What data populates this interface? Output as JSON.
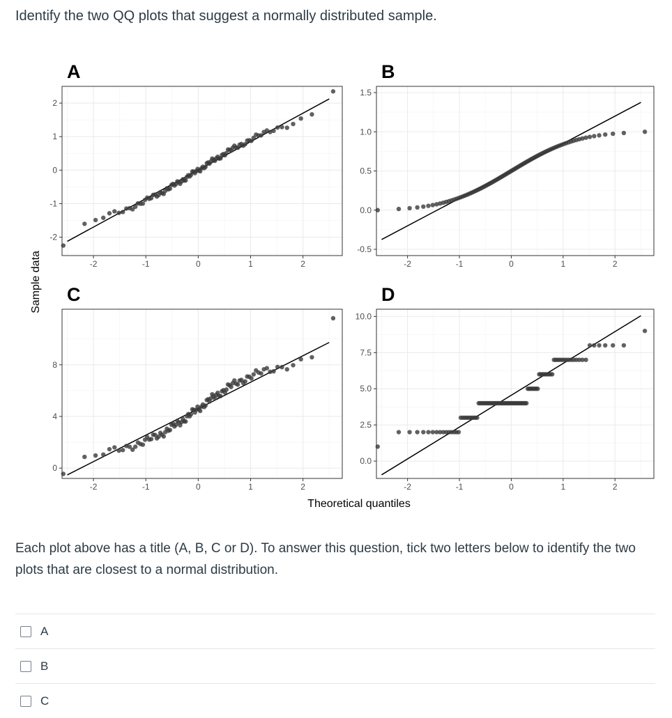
{
  "question": {
    "text": "Identify the two QQ plots that suggest a normally distributed sample."
  },
  "chart_data": {
    "type": "scatter",
    "ylabel": "Sample data",
    "xlabel": "Theoretical quantiles",
    "colors": {
      "point": "#3a3a3a",
      "line": "#000000",
      "grid_major": "#ebebeb",
      "grid_minor": "#f5f5f5"
    },
    "panels": [
      {
        "id": "A",
        "title": "A",
        "xlim": [
          -2.6,
          2.75
        ],
        "ylim": [
          -2.55,
          2.5
        ],
        "xticks": [
          -2,
          -1,
          0,
          1,
          2
        ],
        "yticks": [
          -2,
          -1,
          0,
          1,
          2
        ],
        "yticklabels": [
          "-2",
          "-1",
          "0",
          "1",
          "2"
        ],
        "line": {
          "intercept": 0.0,
          "slope": 0.85
        },
        "dist": "normal"
      },
      {
        "id": "B",
        "title": "B",
        "xlim": [
          -2.6,
          2.75
        ],
        "ylim": [
          -0.58,
          1.58
        ],
        "xticks": [
          -2,
          -1,
          0,
          1,
          2
        ],
        "yticks": [
          -0.5,
          0,
          0.5,
          1,
          1.5
        ],
        "yticklabels": [
          "-0.5",
          "0.0",
          "0.5",
          "1.0",
          "1.5"
        ],
        "line": {
          "intercept": 0.5,
          "slope": 0.35
        },
        "dist": "uniform"
      },
      {
        "id": "C",
        "title": "C",
        "xlim": [
          -2.6,
          2.75
        ],
        "ylim": [
          -0.8,
          12.3
        ],
        "xticks": [
          -2,
          -1,
          0,
          1,
          2
        ],
        "yticks": [
          0,
          4,
          8
        ],
        "yticklabels": [
          "0",
          "4",
          "8"
        ],
        "line": {
          "intercept": 4.6,
          "slope": 2.05
        },
        "dist": "normal"
      },
      {
        "id": "D",
        "title": "D",
        "xlim": [
          -2.6,
          2.75
        ],
        "ylim": [
          -1.2,
          10.5
        ],
        "xticks": [
          -2,
          -1,
          0,
          1,
          2
        ],
        "yticks": [
          0,
          2.5,
          5,
          7.5,
          10
        ],
        "yticklabels": [
          "0.0",
          "2.5",
          "5.0",
          "7.5",
          "10.0"
        ],
        "line": {
          "intercept": 4.55,
          "slope": 2.2
        },
        "dist": "discrete"
      }
    ]
  },
  "instructions": {
    "text": "Each plot above has a title (A, B, C or D). To answer this question, tick two letters below to identify the two plots that are closest to a normal distribution."
  },
  "answers": {
    "options": [
      {
        "label": "A",
        "checked": false
      },
      {
        "label": "B",
        "checked": false
      },
      {
        "label": "C",
        "checked": false
      }
    ]
  }
}
